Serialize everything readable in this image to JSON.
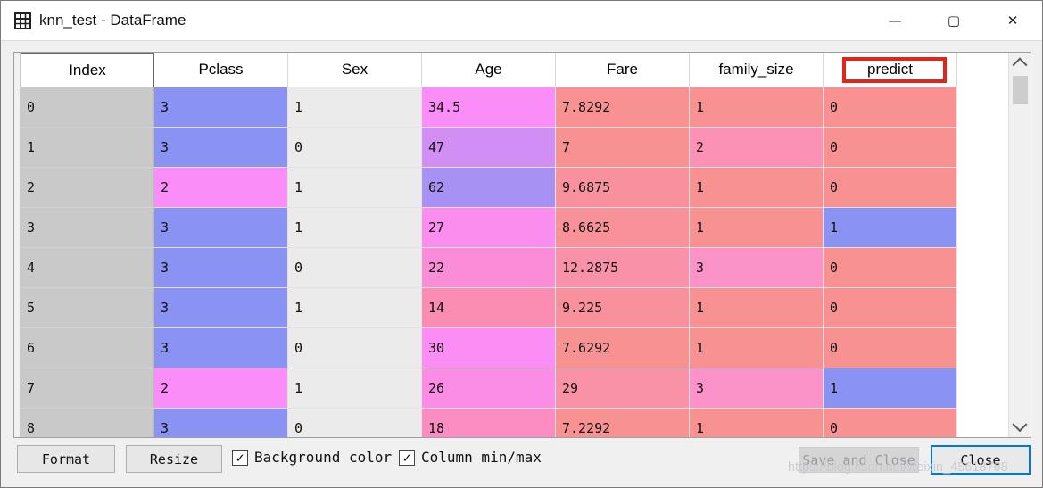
{
  "window": {
    "title": "knn_test - DataFrame",
    "controls": {
      "minimize": "—",
      "maximize": "▢",
      "close": "✕"
    }
  },
  "table": {
    "columns": [
      "Index",
      "Pclass",
      "Sex",
      "Age",
      "Fare",
      "family_size",
      "predict"
    ],
    "highlighted_column": "predict",
    "highlight_color": "#e1251b",
    "index_bg": "#c9c9c9",
    "rows": [
      {
        "index": "0",
        "cells": [
          {
            "v": "3",
            "c": "#8b93f2"
          },
          {
            "v": "1",
            "c": "#ebebeb"
          },
          {
            "v": "34.5",
            "c": "#fb8df8"
          },
          {
            "v": "7.8292",
            "c": "#f89191"
          },
          {
            "v": "1",
            "c": "#f89292"
          },
          {
            "v": "0",
            "c": "#f89191"
          }
        ]
      },
      {
        "index": "1",
        "cells": [
          {
            "v": "3",
            "c": "#8b93f2"
          },
          {
            "v": "0",
            "c": "#ebebeb"
          },
          {
            "v": "47",
            "c": "#d18ef5"
          },
          {
            "v": "7",
            "c": "#f89191"
          },
          {
            "v": "2",
            "c": "#fb92b5"
          },
          {
            "v": "0",
            "c": "#f89191"
          }
        ]
      },
      {
        "index": "2",
        "cells": [
          {
            "v": "2",
            "c": "#fb8df8"
          },
          {
            "v": "1",
            "c": "#ebebeb"
          },
          {
            "v": "62",
            "c": "#a791f3"
          },
          {
            "v": "9.6875",
            "c": "#f8919d"
          },
          {
            "v": "1",
            "c": "#f89292"
          },
          {
            "v": "0",
            "c": "#f89191"
          }
        ]
      },
      {
        "index": "3",
        "cells": [
          {
            "v": "3",
            "c": "#8b93f2"
          },
          {
            "v": "1",
            "c": "#ebebeb"
          },
          {
            "v": "27",
            "c": "#fb8def"
          },
          {
            "v": "8.6625",
            "c": "#f89198"
          },
          {
            "v": "1",
            "c": "#f89292"
          },
          {
            "v": "1",
            "c": "#8b93f2"
          }
        ]
      },
      {
        "index": "4",
        "cells": [
          {
            "v": "3",
            "c": "#8b93f2"
          },
          {
            "v": "0",
            "c": "#ebebeb"
          },
          {
            "v": "22",
            "c": "#fb8dd8"
          },
          {
            "v": "12.2875",
            "c": "#f991a8"
          },
          {
            "v": "3",
            "c": "#fb92c8"
          },
          {
            "v": "0",
            "c": "#f89191"
          }
        ]
      },
      {
        "index": "5",
        "cells": [
          {
            "v": "3",
            "c": "#8b93f2"
          },
          {
            "v": "1",
            "c": "#ebebeb"
          },
          {
            "v": "14",
            "c": "#fb8db2"
          },
          {
            "v": "9.225",
            "c": "#f8919b"
          },
          {
            "v": "1",
            "c": "#f89292"
          },
          {
            "v": "0",
            "c": "#f89191"
          }
        ]
      },
      {
        "index": "6",
        "cells": [
          {
            "v": "3",
            "c": "#8b93f2"
          },
          {
            "v": "0",
            "c": "#ebebeb"
          },
          {
            "v": "30",
            "c": "#fb8df4"
          },
          {
            "v": "7.6292",
            "c": "#f89192"
          },
          {
            "v": "1",
            "c": "#f89292"
          },
          {
            "v": "0",
            "c": "#f89191"
          }
        ]
      },
      {
        "index": "7",
        "cells": [
          {
            "v": "2",
            "c": "#fb8df8"
          },
          {
            "v": "1",
            "c": "#ebebeb"
          },
          {
            "v": "26",
            "c": "#fb8de6"
          },
          {
            "v": "29",
            "c": "#f992a6"
          },
          {
            "v": "3",
            "c": "#fb92c8"
          },
          {
            "v": "1",
            "c": "#8b93f2"
          }
        ]
      },
      {
        "index": "8",
        "cells": [
          {
            "v": "3",
            "c": "#8b93f2"
          },
          {
            "v": "0",
            "c": "#ebebeb"
          },
          {
            "v": "18",
            "c": "#fb8dc2"
          },
          {
            "v": "7.2292",
            "c": "#f89191"
          },
          {
            "v": "1",
            "c": "#f89292"
          },
          {
            "v": "0",
            "c": "#f89191"
          }
        ]
      }
    ]
  },
  "footer": {
    "format_label": "Format",
    "resize_label": "Resize",
    "background_color_label": "Background color",
    "background_color_checked": "✓",
    "column_minmax_label": "Column min/max",
    "column_minmax_checked": "✓",
    "save_and_close_label": "Save and Close",
    "close_label": "Close",
    "watermark": "https://blog.csdn.net/weixin_45618768"
  }
}
